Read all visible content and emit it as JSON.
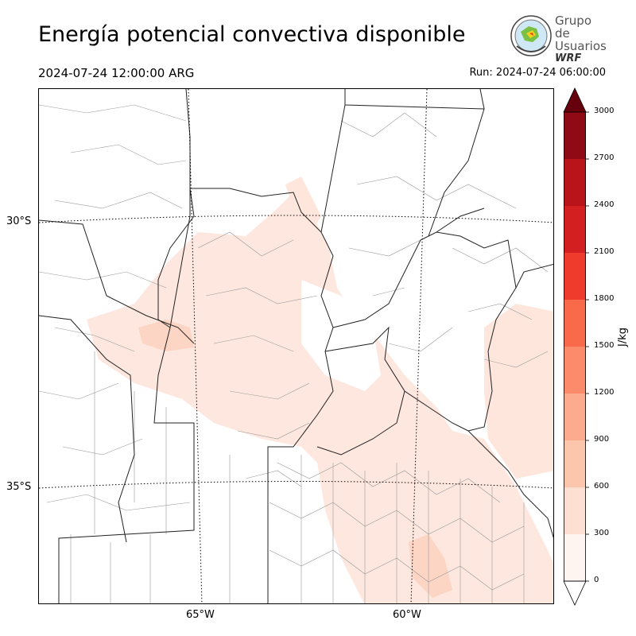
{
  "header": {
    "title": "Energía potencial convectiva disponible",
    "valid_time": "2024-07-24 12:00:00 ARG",
    "run_time": "Run: 2024-07-24 06:00:00"
  },
  "logo": {
    "line1": "Grupo de",
    "line2": "Usuarios",
    "line3": "WRF"
  },
  "map": {
    "lat_labels": [
      "30°S",
      "35°S"
    ],
    "lon_labels": [
      "65°W",
      "60°W"
    ]
  },
  "colorbar": {
    "unit": "J/kg",
    "ticks": [
      "3000",
      "2700",
      "2400",
      "2100",
      "1800",
      "1500",
      "1200",
      "900",
      "600",
      "300",
      "0"
    ],
    "colors": [
      "#fff5f0",
      "#fee0d2",
      "#fcc6ac",
      "#fcab8f",
      "#fc8b6b",
      "#f96a4a",
      "#ef3b2c",
      "#d41f21",
      "#b91419",
      "#8f0a14"
    ],
    "extend_max_color": "#67000d",
    "extend_min_color": "#ffffff"
  }
}
